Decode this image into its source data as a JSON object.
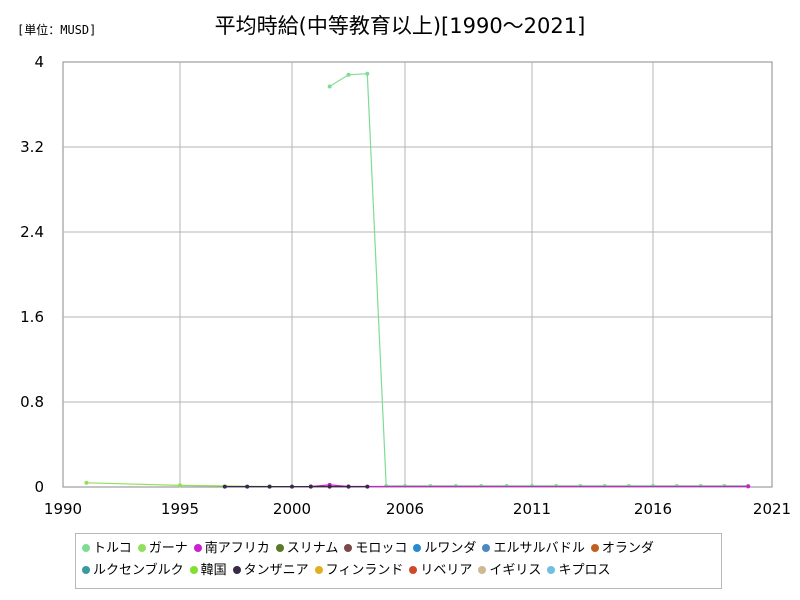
{
  "unit_label": "[単位：MUSD]",
  "chart_data": {
    "type": "line",
    "title": "平均時給(中等教育以上)[1990～2021]",
    "xlabel": "",
    "ylabel": "",
    "xlim": [
      1990,
      2021
    ],
    "ylim": [
      0,
      4
    ],
    "x_ticks": [
      "1990",
      "1995",
      "2000",
      "2006",
      "2011",
      "2016",
      "2021"
    ],
    "y_ticks": [
      "0",
      "0.8",
      "1.6",
      "2.4",
      "3.2",
      "4"
    ],
    "grid": true,
    "legend_position": "bottom",
    "series": [
      {
        "name": "トルコ",
        "color": "#7fdc93",
        "x": [
          2002,
          2003,
          2004,
          2005,
          2006,
          2007,
          2008,
          2009,
          2010,
          2011,
          2012,
          2013,
          2014,
          2015,
          2016,
          2017,
          2018,
          2019,
          2020
        ],
        "y": [
          3.77,
          3.88,
          3.89,
          0.01,
          0.01,
          0.01,
          0.01,
          0.01,
          0.01,
          0.01,
          0.01,
          0.01,
          0.01,
          0.01,
          0.01,
          0.01,
          0.01,
          0.01,
          0.01
        ]
      },
      {
        "name": "ガーナ",
        "color": "#8fe05a",
        "x": [
          1991,
          1995,
          1999
        ],
        "y": [
          0.04,
          0.015,
          0.005
        ]
      },
      {
        "name": "南アフリカ",
        "color": "#cc22cc",
        "x": [
          2001,
          2002,
          2003,
          2020
        ],
        "y": [
          0.005,
          0.02,
          0.005,
          0.006
        ]
      },
      {
        "name": "スリナム",
        "color": "#5a7a2a",
        "x": [],
        "y": []
      },
      {
        "name": "モロッコ",
        "color": "#7a4a4a",
        "x": [],
        "y": []
      },
      {
        "name": "ルワンダ",
        "color": "#2a8ad0",
        "x": [],
        "y": []
      },
      {
        "name": "エルサルバドル",
        "color": "#4a8ac0",
        "x": [],
        "y": []
      },
      {
        "name": "オランダ",
        "color": "#c06020",
        "x": [],
        "y": []
      },
      {
        "name": "ルクセンブルク",
        "color": "#3a9aa0",
        "x": [],
        "y": []
      },
      {
        "name": "韓国",
        "color": "#80e030",
        "x": [],
        "y": []
      },
      {
        "name": "タンザニア",
        "color": "#3a2a4a",
        "x": [
          1997,
          1998,
          1999,
          2000,
          2001,
          2002,
          2003,
          2004
        ],
        "y": [
          0.004,
          0.004,
          0.004,
          0.004,
          0.004,
          0.004,
          0.004,
          0.004
        ]
      },
      {
        "name": "フィンランド",
        "color": "#e0b020",
        "x": [],
        "y": []
      },
      {
        "name": "リベリア",
        "color": "#d04a2a",
        "x": [],
        "y": []
      },
      {
        "name": "イギリス",
        "color": "#d0b890",
        "x": [],
        "y": []
      },
      {
        "name": "キプロス",
        "color": "#70c0e0",
        "x": [],
        "y": []
      }
    ]
  }
}
